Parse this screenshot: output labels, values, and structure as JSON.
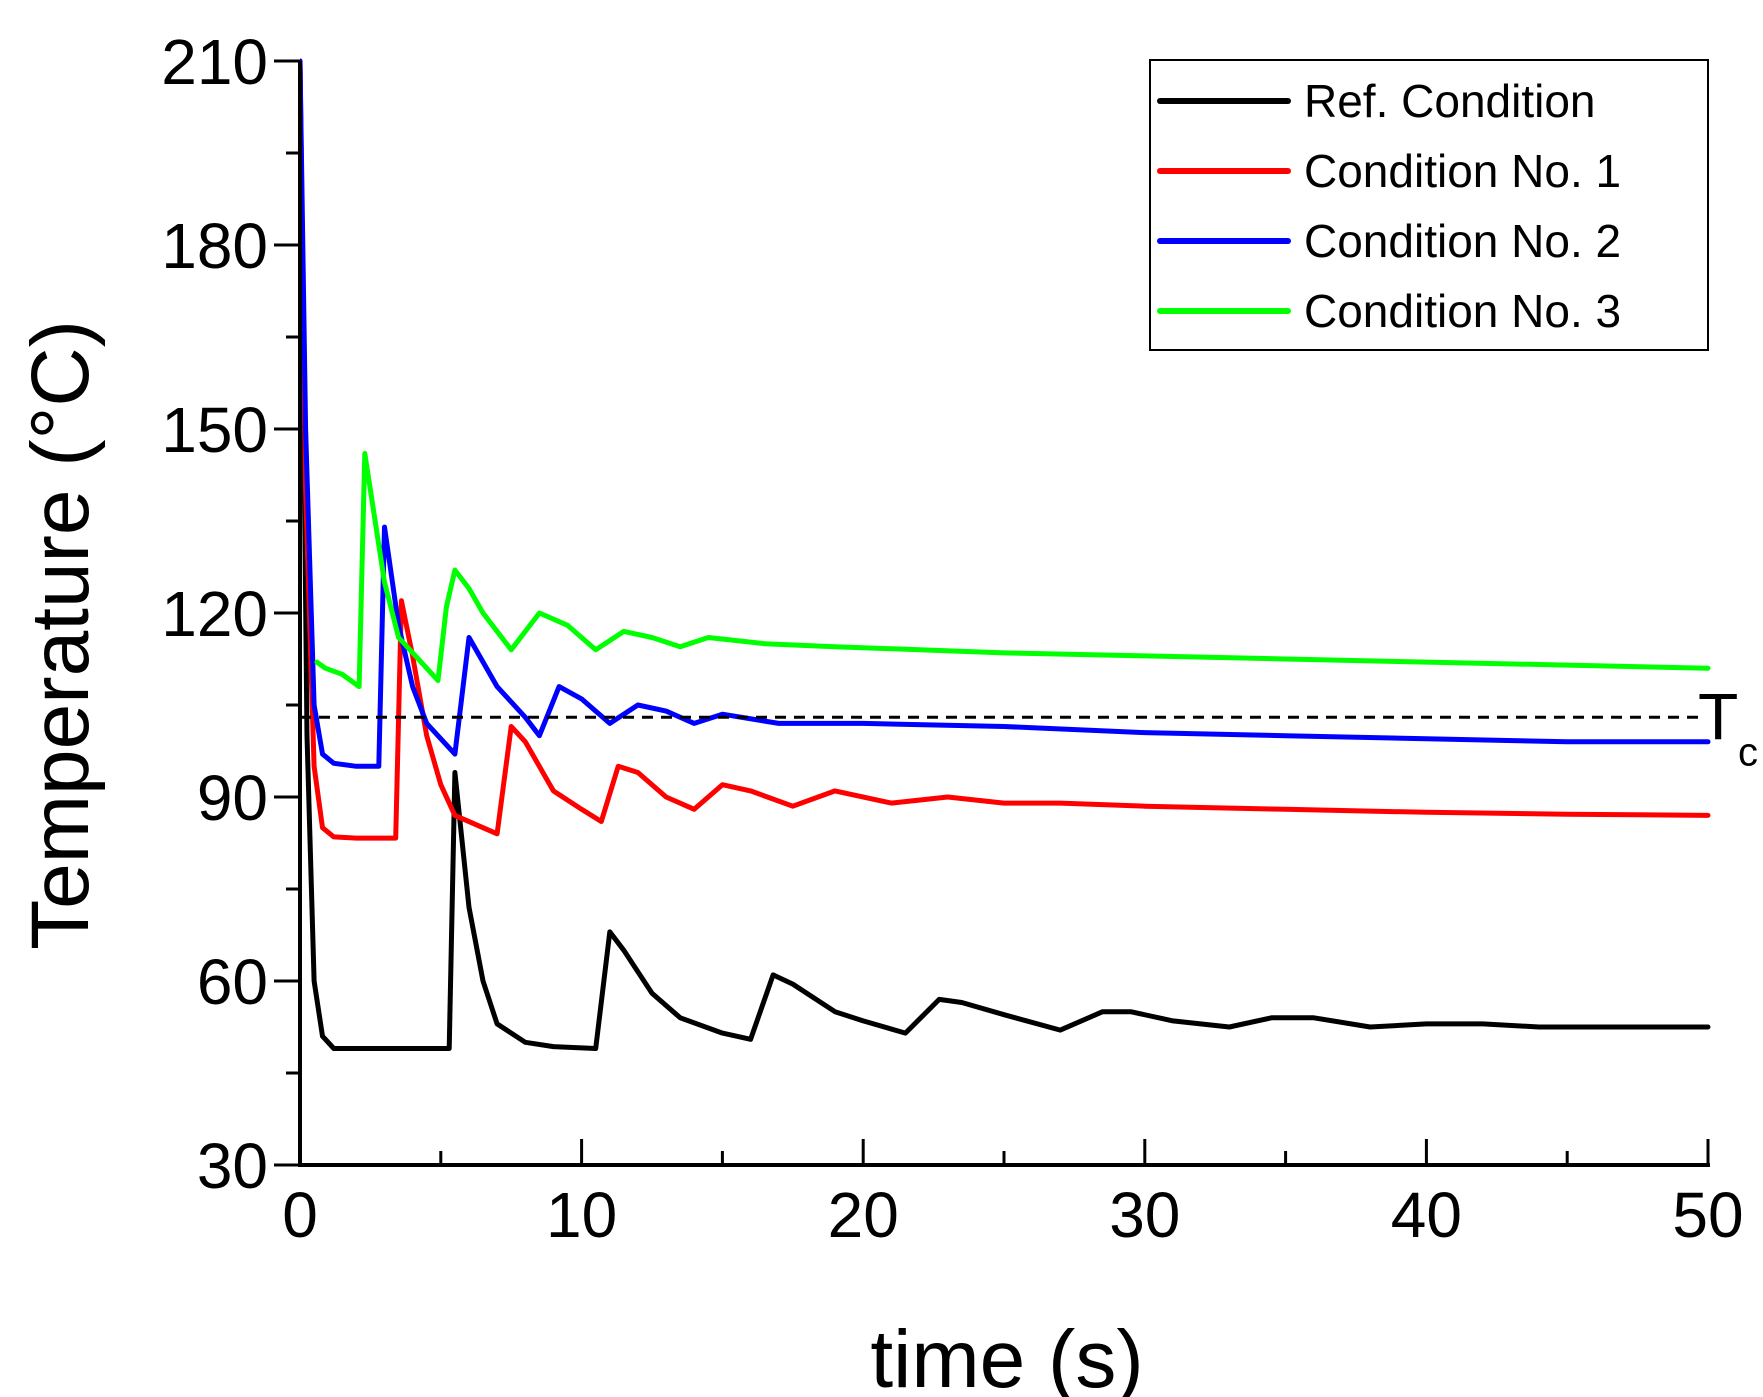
{
  "chart_data": {
    "type": "line",
    "xlabel": "time (s)",
    "ylabel": "Temperature (°C)",
    "xlim": [
      0,
      50
    ],
    "ylim": [
      30,
      210
    ],
    "xticks": [
      "0",
      "10",
      "20",
      "30",
      "40",
      "50"
    ],
    "yticks": [
      "30",
      "60",
      "90",
      "120",
      "150",
      "180",
      "210"
    ],
    "grid": false,
    "legend_position": "top-right",
    "reference_line": {
      "label_main": "T",
      "label_sub": "c",
      "y": 103,
      "style": "dashed",
      "color": "#000000"
    },
    "series": [
      {
        "name": "Ref. Condition",
        "color": "#000000",
        "points": [
          [
            0,
            210
          ],
          [
            0.25,
            100
          ],
          [
            0.5,
            60
          ],
          [
            0.8,
            51
          ],
          [
            1.2,
            49
          ],
          [
            2,
            49
          ],
          [
            3,
            49
          ],
          [
            4,
            49
          ],
          [
            5.3,
            49
          ],
          [
            5.5,
            94
          ],
          [
            6,
            72
          ],
          [
            6.5,
            60
          ],
          [
            7,
            53
          ],
          [
            8,
            50
          ],
          [
            9,
            49.3
          ],
          [
            10.5,
            49
          ],
          [
            11,
            68
          ],
          [
            11.5,
            65
          ],
          [
            12.5,
            58
          ],
          [
            13.5,
            54
          ],
          [
            15,
            51.5
          ],
          [
            16,
            50.5
          ],
          [
            16.8,
            61
          ],
          [
            17.5,
            59.5
          ],
          [
            19,
            55
          ],
          [
            20,
            53.5
          ],
          [
            21.5,
            51.5
          ],
          [
            22.7,
            57
          ],
          [
            23.5,
            56.5
          ],
          [
            25,
            54.5
          ],
          [
            27,
            52
          ],
          [
            28.5,
            55
          ],
          [
            29.5,
            55
          ],
          [
            31,
            53.5
          ],
          [
            33,
            52.5
          ],
          [
            34.5,
            54
          ],
          [
            36,
            54
          ],
          [
            38,
            52.5
          ],
          [
            40,
            53
          ],
          [
            42,
            53
          ],
          [
            44,
            52.5
          ],
          [
            46,
            52.5
          ],
          [
            48,
            52.5
          ],
          [
            50,
            52.5
          ]
        ]
      },
      {
        "name": "Condition No. 1",
        "color": "#ff0000",
        "points": [
          [
            0,
            210
          ],
          [
            0.2,
            140
          ],
          [
            0.5,
            95
          ],
          [
            0.8,
            85
          ],
          [
            1.2,
            83.5
          ],
          [
            2,
            83.3
          ],
          [
            3.4,
            83.3
          ],
          [
            3.6,
            122
          ],
          [
            4,
            113
          ],
          [
            4.5,
            100
          ],
          [
            5,
            92
          ],
          [
            5.5,
            87
          ],
          [
            6.5,
            85
          ],
          [
            7,
            84
          ],
          [
            7.5,
            101.5
          ],
          [
            8,
            99
          ],
          [
            9,
            91
          ],
          [
            10,
            88
          ],
          [
            10.7,
            86
          ],
          [
            11.3,
            95
          ],
          [
            12,
            94
          ],
          [
            13,
            90
          ],
          [
            14,
            88
          ],
          [
            15,
            92
          ],
          [
            16,
            91
          ],
          [
            17.5,
            88.5
          ],
          [
            19,
            91
          ],
          [
            21,
            89
          ],
          [
            23,
            90
          ],
          [
            25,
            89
          ],
          [
            27,
            89
          ],
          [
            30,
            88.5
          ],
          [
            35,
            88
          ],
          [
            40,
            87.5
          ],
          [
            45,
            87.2
          ],
          [
            50,
            87
          ]
        ]
      },
      {
        "name": "Condition No. 2",
        "color": "#0000ff",
        "points": [
          [
            0,
            210
          ],
          [
            0.2,
            150
          ],
          [
            0.5,
            105
          ],
          [
            0.8,
            97
          ],
          [
            1.2,
            95.5
          ],
          [
            2,
            95
          ],
          [
            2.8,
            95
          ],
          [
            3,
            134
          ],
          [
            3.5,
            118
          ],
          [
            4,
            108
          ],
          [
            4.5,
            102
          ],
          [
            5.5,
            97
          ],
          [
            6,
            116
          ],
          [
            7,
            108
          ],
          [
            8,
            103
          ],
          [
            8.5,
            100
          ],
          [
            9.2,
            108
          ],
          [
            10,
            106
          ],
          [
            11,
            102
          ],
          [
            12,
            105
          ],
          [
            13,
            104
          ],
          [
            14,
            102
          ],
          [
            15,
            103.5
          ],
          [
            17,
            102
          ],
          [
            20,
            102
          ],
          [
            25,
            101.5
          ],
          [
            30,
            100.5
          ],
          [
            35,
            100
          ],
          [
            40,
            99.5
          ],
          [
            45,
            99
          ],
          [
            50,
            99
          ]
        ]
      },
      {
        "name": "Condition No. 3",
        "color": "#00ff00",
        "points": [
          [
            0.6,
            112
          ],
          [
            0.9,
            111
          ],
          [
            1.5,
            110
          ],
          [
            2.1,
            108
          ],
          [
            2.3,
            146
          ],
          [
            3,
            125
          ],
          [
            3.5,
            116
          ],
          [
            4.3,
            112
          ],
          [
            4.9,
            109
          ],
          [
            5.2,
            121
          ],
          [
            5.5,
            127
          ],
          [
            6,
            124
          ],
          [
            6.5,
            120
          ],
          [
            7.5,
            114
          ],
          [
            8.5,
            120
          ],
          [
            9.5,
            118
          ],
          [
            10.5,
            114
          ],
          [
            11.5,
            117
          ],
          [
            12.5,
            116
          ],
          [
            13.5,
            114.5
          ],
          [
            14.5,
            116
          ],
          [
            16.5,
            115
          ],
          [
            19,
            114.5
          ],
          [
            22,
            114
          ],
          [
            25,
            113.5
          ],
          [
            30,
            113
          ],
          [
            35,
            112.5
          ],
          [
            40,
            112
          ],
          [
            45,
            111.5
          ],
          [
            50,
            111
          ]
        ]
      }
    ]
  }
}
